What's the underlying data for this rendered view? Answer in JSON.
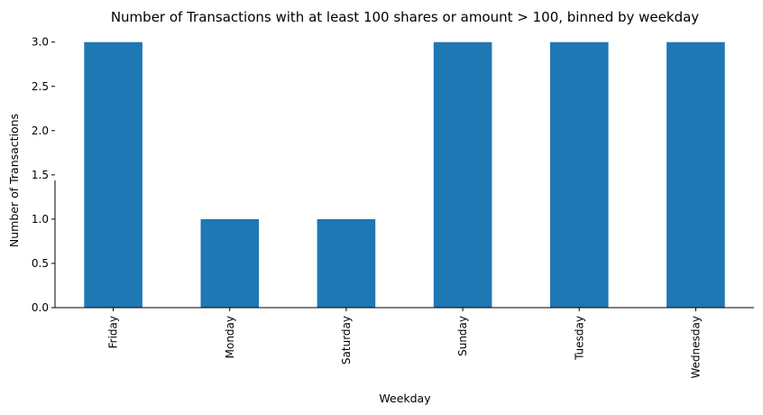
{
  "chart_data": {
    "type": "bar",
    "title": "Number of Transactions with at least 100 shares or amount > 100, binned by weekday",
    "xlabel": "Weekday",
    "ylabel": "Number of Transactions",
    "categories": [
      "Friday",
      "Monday",
      "Saturday",
      "Sunday",
      "Tuesday",
      "Wednesday"
    ],
    "values": [
      3,
      1,
      1,
      3,
      3,
      3
    ],
    "ylim": [
      0,
      3.15
    ],
    "yticks": [
      0.0,
      0.5,
      1.0,
      1.5,
      2.0,
      2.5,
      3.0
    ],
    "ytick_labels": [
      "0.0",
      "0.5",
      "1.0",
      "1.5",
      "2.0",
      "2.5",
      "3.0"
    ],
    "bar_color": "#1f77b4",
    "grid": false,
    "legend": "none"
  }
}
